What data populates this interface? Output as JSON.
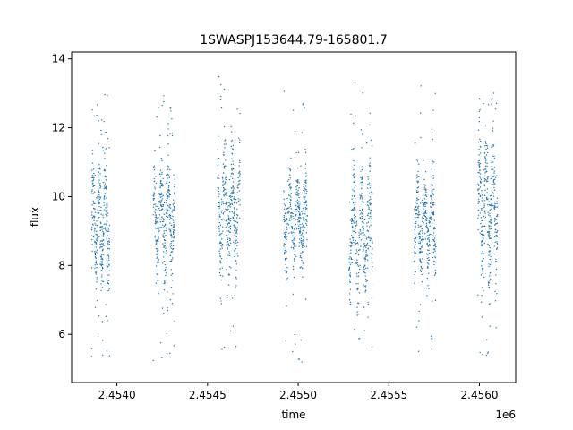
{
  "chart_data": {
    "type": "scatter",
    "title": "1SWASPJ153644.79-165801.7",
    "xlabel": "time",
    "ylabel": "flux",
    "x_offset_label": "1e6",
    "xlim": [
      2453750,
      2456200
    ],
    "ylim": [
      4.6,
      14.2
    ],
    "x_ticks": [
      2454000,
      2454500,
      2455000,
      2455500,
      2456000
    ],
    "x_tick_labels": [
      "2.4540",
      "2.4545",
      "2.4550",
      "2.4555",
      "2.4560"
    ],
    "y_ticks": [
      6,
      8,
      10,
      12,
      14
    ],
    "y_tick_labels": [
      "6",
      "8",
      "10",
      "12",
      "14"
    ],
    "grid": false,
    "point_color": "#1f77b4",
    "seasons": [
      {
        "x_start": 2453860,
        "x_end": 2453960,
        "flux_low": 7.6,
        "flux_high": 11.2,
        "flux_mean": 9.3,
        "flux_min": 5.1,
        "flux_max": 13.1
      },
      {
        "x_start": 2454200,
        "x_end": 2454320,
        "flux_low": 7.9,
        "flux_high": 11.3,
        "flux_mean": 9.4,
        "flux_min": 5.2,
        "flux_max": 13.0
      },
      {
        "x_start": 2454555,
        "x_end": 2454680,
        "flux_low": 8.2,
        "flux_high": 12.0,
        "flux_mean": 9.6,
        "flux_min": 5.3,
        "flux_max": 13.5
      },
      {
        "x_start": 2454920,
        "x_end": 2455050,
        "flux_low": 7.9,
        "flux_high": 10.8,
        "flux_mean": 9.3,
        "flux_min": 5.1,
        "flux_max": 13.2
      },
      {
        "x_start": 2455280,
        "x_end": 2455410,
        "flux_low": 7.0,
        "flux_high": 10.9,
        "flux_mean": 9.0,
        "flux_min": 5.2,
        "flux_max": 13.5
      },
      {
        "x_start": 2455640,
        "x_end": 2455760,
        "flux_low": 7.6,
        "flux_high": 10.6,
        "flux_mean": 9.2,
        "flux_min": 5.3,
        "flux_max": 13.3
      },
      {
        "x_start": 2455990,
        "x_end": 2456100,
        "flux_low": 8.0,
        "flux_high": 12.5,
        "flux_mean": 9.8,
        "flux_min": 5.1,
        "flux_max": 13.1
      }
    ]
  }
}
